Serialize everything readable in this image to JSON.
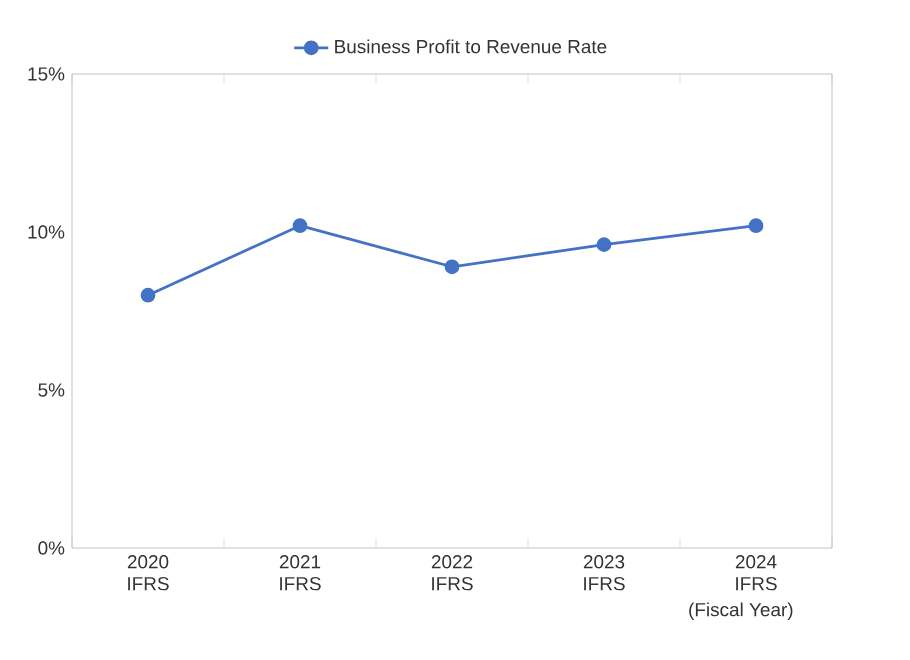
{
  "chart_data": {
    "type": "line",
    "xlabel": "(Fiscal Year)",
    "categories": [
      "2020 IFRS",
      "2021 IFRS",
      "2022 IFRS",
      "2023 IFRS",
      "2024 IFRS"
    ],
    "series": [
      {
        "name": "Business Profit to Revenue Rate",
        "color": "#4472c4",
        "values": [
          8.0,
          10.2,
          8.9,
          9.6,
          10.2
        ]
      }
    ],
    "ylim": [
      0,
      15
    ],
    "yticks": [
      {
        "value": 0,
        "label": "0%"
      },
      {
        "value": 5,
        "label": "5%"
      },
      {
        "value": 10,
        "label": "10%"
      },
      {
        "value": 15,
        "label": "15%"
      }
    ],
    "legend": "top",
    "marker": "circle",
    "line_style": "solid",
    "grid": false
  }
}
